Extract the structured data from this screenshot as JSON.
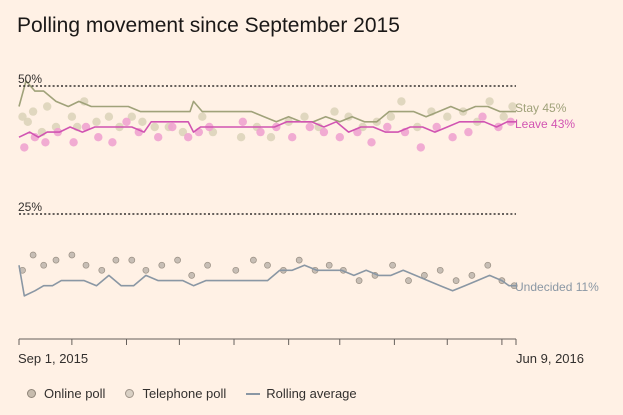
{
  "title": "Polling movement since September 2015",
  "legend": {
    "online": "Online poll",
    "telephone": "Telephone poll",
    "rolling": "Rolling average"
  },
  "colors": {
    "background": "#fff1e5",
    "stay": "#a0a27a",
    "leave": "#d154b2",
    "undecided": "#8a97a4",
    "stay_poll": "#ddd4ba",
    "leave_poll": "#f0a3cf",
    "undecided_poll": "#c2b9b0",
    "reference_line": "#33302e"
  },
  "chart_data": {
    "type": "scatter",
    "title": "Polling movement since September 2015",
    "x_axis": {
      "start": "2015-09-01",
      "end": "2016-06-09",
      "start_label": "Sep 1, 2015",
      "end_label": "Jun 9, 2016",
      "ticks": [
        "2015-09-01",
        "2015-10-01",
        "2015-11-01",
        "2015-12-01",
        "2016-01-01",
        "2016-02-01",
        "2016-03-01",
        "2016-04-01",
        "2016-05-01",
        "2016-06-01"
      ]
    },
    "y_axis": {
      "unit": "%",
      "range": [
        0,
        56
      ],
      "reference_lines": [
        {
          "value": 50,
          "label": "50%"
        },
        {
          "value": 25,
          "label": "25%"
        }
      ]
    },
    "series": [
      {
        "name": "Stay",
        "end_label": "Stay 45%",
        "rolling_average": [
          [
            "2015-09-01",
            46
          ],
          [
            "2015-09-05",
            51
          ],
          [
            "2015-09-10",
            49
          ],
          [
            "2015-09-15",
            49
          ],
          [
            "2015-09-22",
            47
          ],
          [
            "2015-09-29",
            46
          ],
          [
            "2015-10-05",
            47
          ],
          [
            "2015-10-12",
            46
          ],
          [
            "2015-10-19",
            46
          ],
          [
            "2015-10-26",
            46
          ],
          [
            "2015-11-02",
            46
          ],
          [
            "2015-11-09",
            45
          ],
          [
            "2015-11-16",
            45
          ],
          [
            "2015-11-23",
            45
          ],
          [
            "2015-11-30",
            45
          ],
          [
            "2015-12-07",
            45
          ],
          [
            "2015-12-09",
            47
          ],
          [
            "2015-12-14",
            45
          ],
          [
            "2015-12-21",
            45
          ],
          [
            "2015-12-28",
            45
          ],
          [
            "2016-01-04",
            45
          ],
          [
            "2016-01-11",
            45
          ],
          [
            "2016-01-18",
            44
          ],
          [
            "2016-01-25",
            43
          ],
          [
            "2016-02-01",
            44
          ],
          [
            "2016-02-08",
            43
          ],
          [
            "2016-02-15",
            43
          ],
          [
            "2016-02-22",
            44
          ],
          [
            "2016-03-01",
            43
          ],
          [
            "2016-03-08",
            44
          ],
          [
            "2016-03-15",
            43
          ],
          [
            "2016-03-22",
            43
          ],
          [
            "2016-03-29",
            45
          ],
          [
            "2016-04-05",
            45
          ],
          [
            "2016-04-12",
            45
          ],
          [
            "2016-04-19",
            44
          ],
          [
            "2016-04-26",
            45
          ],
          [
            "2016-05-03",
            46
          ],
          [
            "2016-05-10",
            45
          ],
          [
            "2016-05-17",
            46
          ],
          [
            "2016-05-24",
            46
          ],
          [
            "2016-05-31",
            45
          ],
          [
            "2016-06-04",
            45
          ],
          [
            "2016-06-09",
            45
          ]
        ],
        "polls": [
          [
            "2015-09-03",
            44
          ],
          [
            "2015-09-06",
            43
          ],
          [
            "2015-09-09",
            45
          ],
          [
            "2015-09-14",
            41
          ],
          [
            "2015-09-17",
            46
          ],
          [
            "2015-09-22",
            42
          ],
          [
            "2015-10-01",
            44
          ],
          [
            "2015-10-04",
            42
          ],
          [
            "2015-10-08",
            47
          ],
          [
            "2015-10-15",
            43
          ],
          [
            "2015-10-22",
            44
          ],
          [
            "2015-10-28",
            42
          ],
          [
            "2015-11-04",
            44
          ],
          [
            "2015-11-10",
            43
          ],
          [
            "2015-11-17",
            42
          ],
          [
            "2015-11-25",
            42
          ],
          [
            "2015-12-03",
            41
          ],
          [
            "2015-12-14",
            44
          ],
          [
            "2015-12-20",
            41
          ],
          [
            "2016-01-05",
            40
          ],
          [
            "2016-01-14",
            42
          ],
          [
            "2016-01-22",
            40
          ],
          [
            "2016-02-01",
            43
          ],
          [
            "2016-02-10",
            44
          ],
          [
            "2016-02-18",
            42
          ],
          [
            "2016-02-27",
            45
          ],
          [
            "2016-03-06",
            44
          ],
          [
            "2016-03-14",
            42
          ],
          [
            "2016-03-22",
            43
          ],
          [
            "2016-03-30",
            44
          ],
          [
            "2016-04-05",
            47
          ],
          [
            "2016-04-14",
            42
          ],
          [
            "2016-04-22",
            45
          ],
          [
            "2016-05-01",
            44
          ],
          [
            "2016-05-10",
            45
          ],
          [
            "2016-05-18",
            43
          ],
          [
            "2016-05-25",
            47
          ],
          [
            "2016-06-02",
            44
          ],
          [
            "2016-06-07",
            46
          ]
        ]
      },
      {
        "name": "Leave",
        "end_label": "Leave 43%",
        "rolling_average": [
          [
            "2015-09-01",
            40
          ],
          [
            "2015-09-07",
            41
          ],
          [
            "2015-09-12",
            40
          ],
          [
            "2015-09-17",
            41
          ],
          [
            "2015-09-24",
            41
          ],
          [
            "2015-09-30",
            42
          ],
          [
            "2015-10-07",
            41
          ],
          [
            "2015-10-14",
            42
          ],
          [
            "2015-10-21",
            42
          ],
          [
            "2015-10-28",
            42
          ],
          [
            "2015-11-04",
            42
          ],
          [
            "2015-11-11",
            41
          ],
          [
            "2015-11-15",
            43
          ],
          [
            "2015-11-22",
            43
          ],
          [
            "2015-11-29",
            43
          ],
          [
            "2015-12-06",
            43
          ],
          [
            "2015-12-09",
            41
          ],
          [
            "2015-12-13",
            42
          ],
          [
            "2015-12-20",
            42
          ],
          [
            "2015-12-27",
            42
          ],
          [
            "2016-01-03",
            42
          ],
          [
            "2016-01-10",
            42
          ],
          [
            "2016-01-17",
            42
          ],
          [
            "2016-01-24",
            42
          ],
          [
            "2016-01-31",
            43
          ],
          [
            "2016-02-07",
            43
          ],
          [
            "2016-02-14",
            43
          ],
          [
            "2016-02-21",
            42
          ],
          [
            "2016-02-28",
            43
          ],
          [
            "2016-03-06",
            41
          ],
          [
            "2016-03-13",
            42
          ],
          [
            "2016-03-20",
            42
          ],
          [
            "2016-03-27",
            41
          ],
          [
            "2016-04-03",
            41
          ],
          [
            "2016-04-10",
            42
          ],
          [
            "2016-04-17",
            42
          ],
          [
            "2016-04-24",
            41
          ],
          [
            "2016-05-01",
            42
          ],
          [
            "2016-05-08",
            43
          ],
          [
            "2016-05-15",
            43
          ],
          [
            "2016-05-22",
            43
          ],
          [
            "2016-05-29",
            42
          ],
          [
            "2016-06-04",
            43
          ],
          [
            "2016-06-09",
            43
          ]
        ],
        "polls": [
          [
            "2015-09-04",
            38
          ],
          [
            "2015-09-10",
            40
          ],
          [
            "2015-09-16",
            39
          ],
          [
            "2015-09-23",
            41
          ],
          [
            "2015-10-02",
            39
          ],
          [
            "2015-10-09",
            42
          ],
          [
            "2015-10-16",
            40
          ],
          [
            "2015-10-24",
            39
          ],
          [
            "2015-11-01",
            43
          ],
          [
            "2015-11-08",
            41
          ],
          [
            "2015-11-19",
            40
          ],
          [
            "2015-11-27",
            42
          ],
          [
            "2015-12-06",
            40
          ],
          [
            "2015-12-12",
            41
          ],
          [
            "2015-12-18",
            42
          ],
          [
            "2016-01-06",
            43
          ],
          [
            "2016-01-16",
            41
          ],
          [
            "2016-01-25",
            42
          ],
          [
            "2016-02-03",
            40
          ],
          [
            "2016-02-13",
            42
          ],
          [
            "2016-02-21",
            41
          ],
          [
            "2016-03-01",
            40
          ],
          [
            "2016-03-11",
            41
          ],
          [
            "2016-03-19",
            39
          ],
          [
            "2016-03-28",
            42
          ],
          [
            "2016-04-07",
            41
          ],
          [
            "2016-04-16",
            38
          ],
          [
            "2016-04-25",
            42
          ],
          [
            "2016-05-04",
            40
          ],
          [
            "2016-05-13",
            41
          ],
          [
            "2016-05-21",
            44
          ],
          [
            "2016-05-30",
            42
          ],
          [
            "2016-06-06",
            43
          ]
        ]
      },
      {
        "name": "Undecided",
        "end_label": "Undecided 11%",
        "rolling_average": [
          [
            "2015-09-01",
            15
          ],
          [
            "2015-09-04",
            9
          ],
          [
            "2015-09-10",
            10
          ],
          [
            "2015-09-15",
            11
          ],
          [
            "2015-09-20",
            11
          ],
          [
            "2015-09-25",
            12
          ],
          [
            "2015-10-01",
            12
          ],
          [
            "2015-10-08",
            12
          ],
          [
            "2015-10-15",
            11
          ],
          [
            "2015-10-22",
            13
          ],
          [
            "2015-10-29",
            11
          ],
          [
            "2015-11-05",
            11
          ],
          [
            "2015-11-12",
            13
          ],
          [
            "2015-11-19",
            12
          ],
          [
            "2015-11-26",
            12
          ],
          [
            "2015-12-03",
            12
          ],
          [
            "2015-12-09",
            11
          ],
          [
            "2015-12-16",
            12
          ],
          [
            "2015-12-23",
            12
          ],
          [
            "2015-12-30",
            12
          ],
          [
            "2016-01-06",
            12
          ],
          [
            "2016-01-13",
            12
          ],
          [
            "2016-01-20",
            12
          ],
          [
            "2016-01-27",
            14
          ],
          [
            "2016-02-03",
            14
          ],
          [
            "2016-02-10",
            15
          ],
          [
            "2016-02-17",
            14
          ],
          [
            "2016-02-24",
            14
          ],
          [
            "2016-03-02",
            14
          ],
          [
            "2016-03-09",
            13
          ],
          [
            "2016-03-16",
            14
          ],
          [
            "2016-03-23",
            13
          ],
          [
            "2016-03-30",
            13
          ],
          [
            "2016-04-06",
            14
          ],
          [
            "2016-04-13",
            13
          ],
          [
            "2016-04-20",
            12
          ],
          [
            "2016-04-27",
            11
          ],
          [
            "2016-05-04",
            10
          ],
          [
            "2016-05-11",
            11
          ],
          [
            "2016-05-18",
            12
          ],
          [
            "2016-05-25",
            13
          ],
          [
            "2016-06-01",
            12
          ],
          [
            "2016-06-05",
            11
          ],
          [
            "2016-06-09",
            11
          ]
        ],
        "polls": [
          [
            "2015-09-03",
            14
          ],
          [
            "2015-09-09",
            17
          ],
          [
            "2015-09-15",
            15
          ],
          [
            "2015-09-22",
            16
          ],
          [
            "2015-10-01",
            17
          ],
          [
            "2015-10-09",
            15
          ],
          [
            "2015-10-18",
            14
          ],
          [
            "2015-10-26",
            16
          ],
          [
            "2015-11-04",
            16
          ],
          [
            "2015-11-12",
            14
          ],
          [
            "2015-11-21",
            15
          ],
          [
            "2015-11-30",
            16
          ],
          [
            "2015-12-08",
            13
          ],
          [
            "2015-12-17",
            15
          ],
          [
            "2016-01-02",
            14
          ],
          [
            "2016-01-12",
            16
          ],
          [
            "2016-01-20",
            15
          ],
          [
            "2016-01-29",
            14
          ],
          [
            "2016-02-07",
            16
          ],
          [
            "2016-02-16",
            14
          ],
          [
            "2016-02-24",
            15
          ],
          [
            "2016-03-03",
            14
          ],
          [
            "2016-03-12",
            12
          ],
          [
            "2016-03-21",
            13
          ],
          [
            "2016-03-31",
            15
          ],
          [
            "2016-04-09",
            12
          ],
          [
            "2016-04-18",
            13
          ],
          [
            "2016-04-27",
            14
          ],
          [
            "2016-05-06",
            12
          ],
          [
            "2016-05-15",
            13
          ],
          [
            "2016-05-24",
            15
          ],
          [
            "2016-06-01",
            12
          ],
          [
            "2016-06-08",
            11
          ]
        ]
      }
    ]
  }
}
